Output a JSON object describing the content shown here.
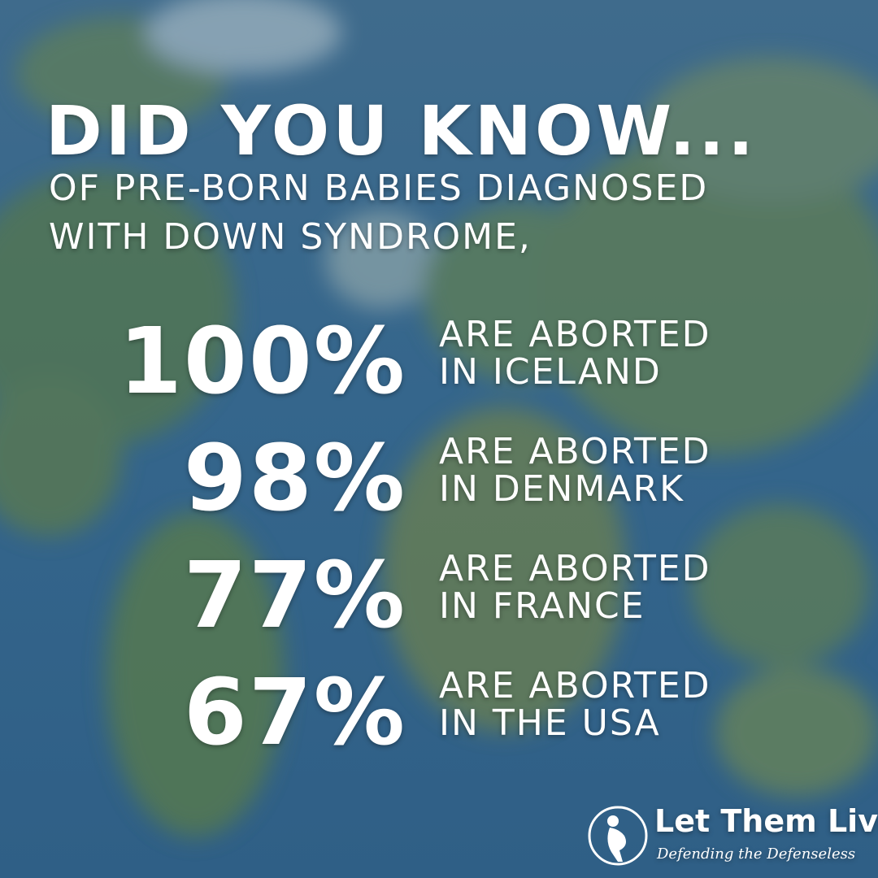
{
  "header": {
    "title": "DID YOU KNOW...",
    "subtitle_lines": [
      "OF PRE-BORN BABIES DIAGNOSED",
      "WITH DOWN SYNDROME,"
    ]
  },
  "stats": [
    {
      "percent": "100%",
      "lines": [
        "ARE ABORTED",
        "IN ICELAND"
      ]
    },
    {
      "percent": "98%",
      "lines": [
        "ARE ABORTED",
        "IN DENMARK"
      ]
    },
    {
      "percent": "77%",
      "lines": [
        "ARE ABORTED",
        "IN FRANCE"
      ]
    },
    {
      "percent": "67%",
      "lines": [
        "ARE ABORTED",
        "IN THE USA"
      ]
    }
  ],
  "logo": {
    "name": "Let Them Live",
    "tagline": "Defending the Defenseless"
  }
}
